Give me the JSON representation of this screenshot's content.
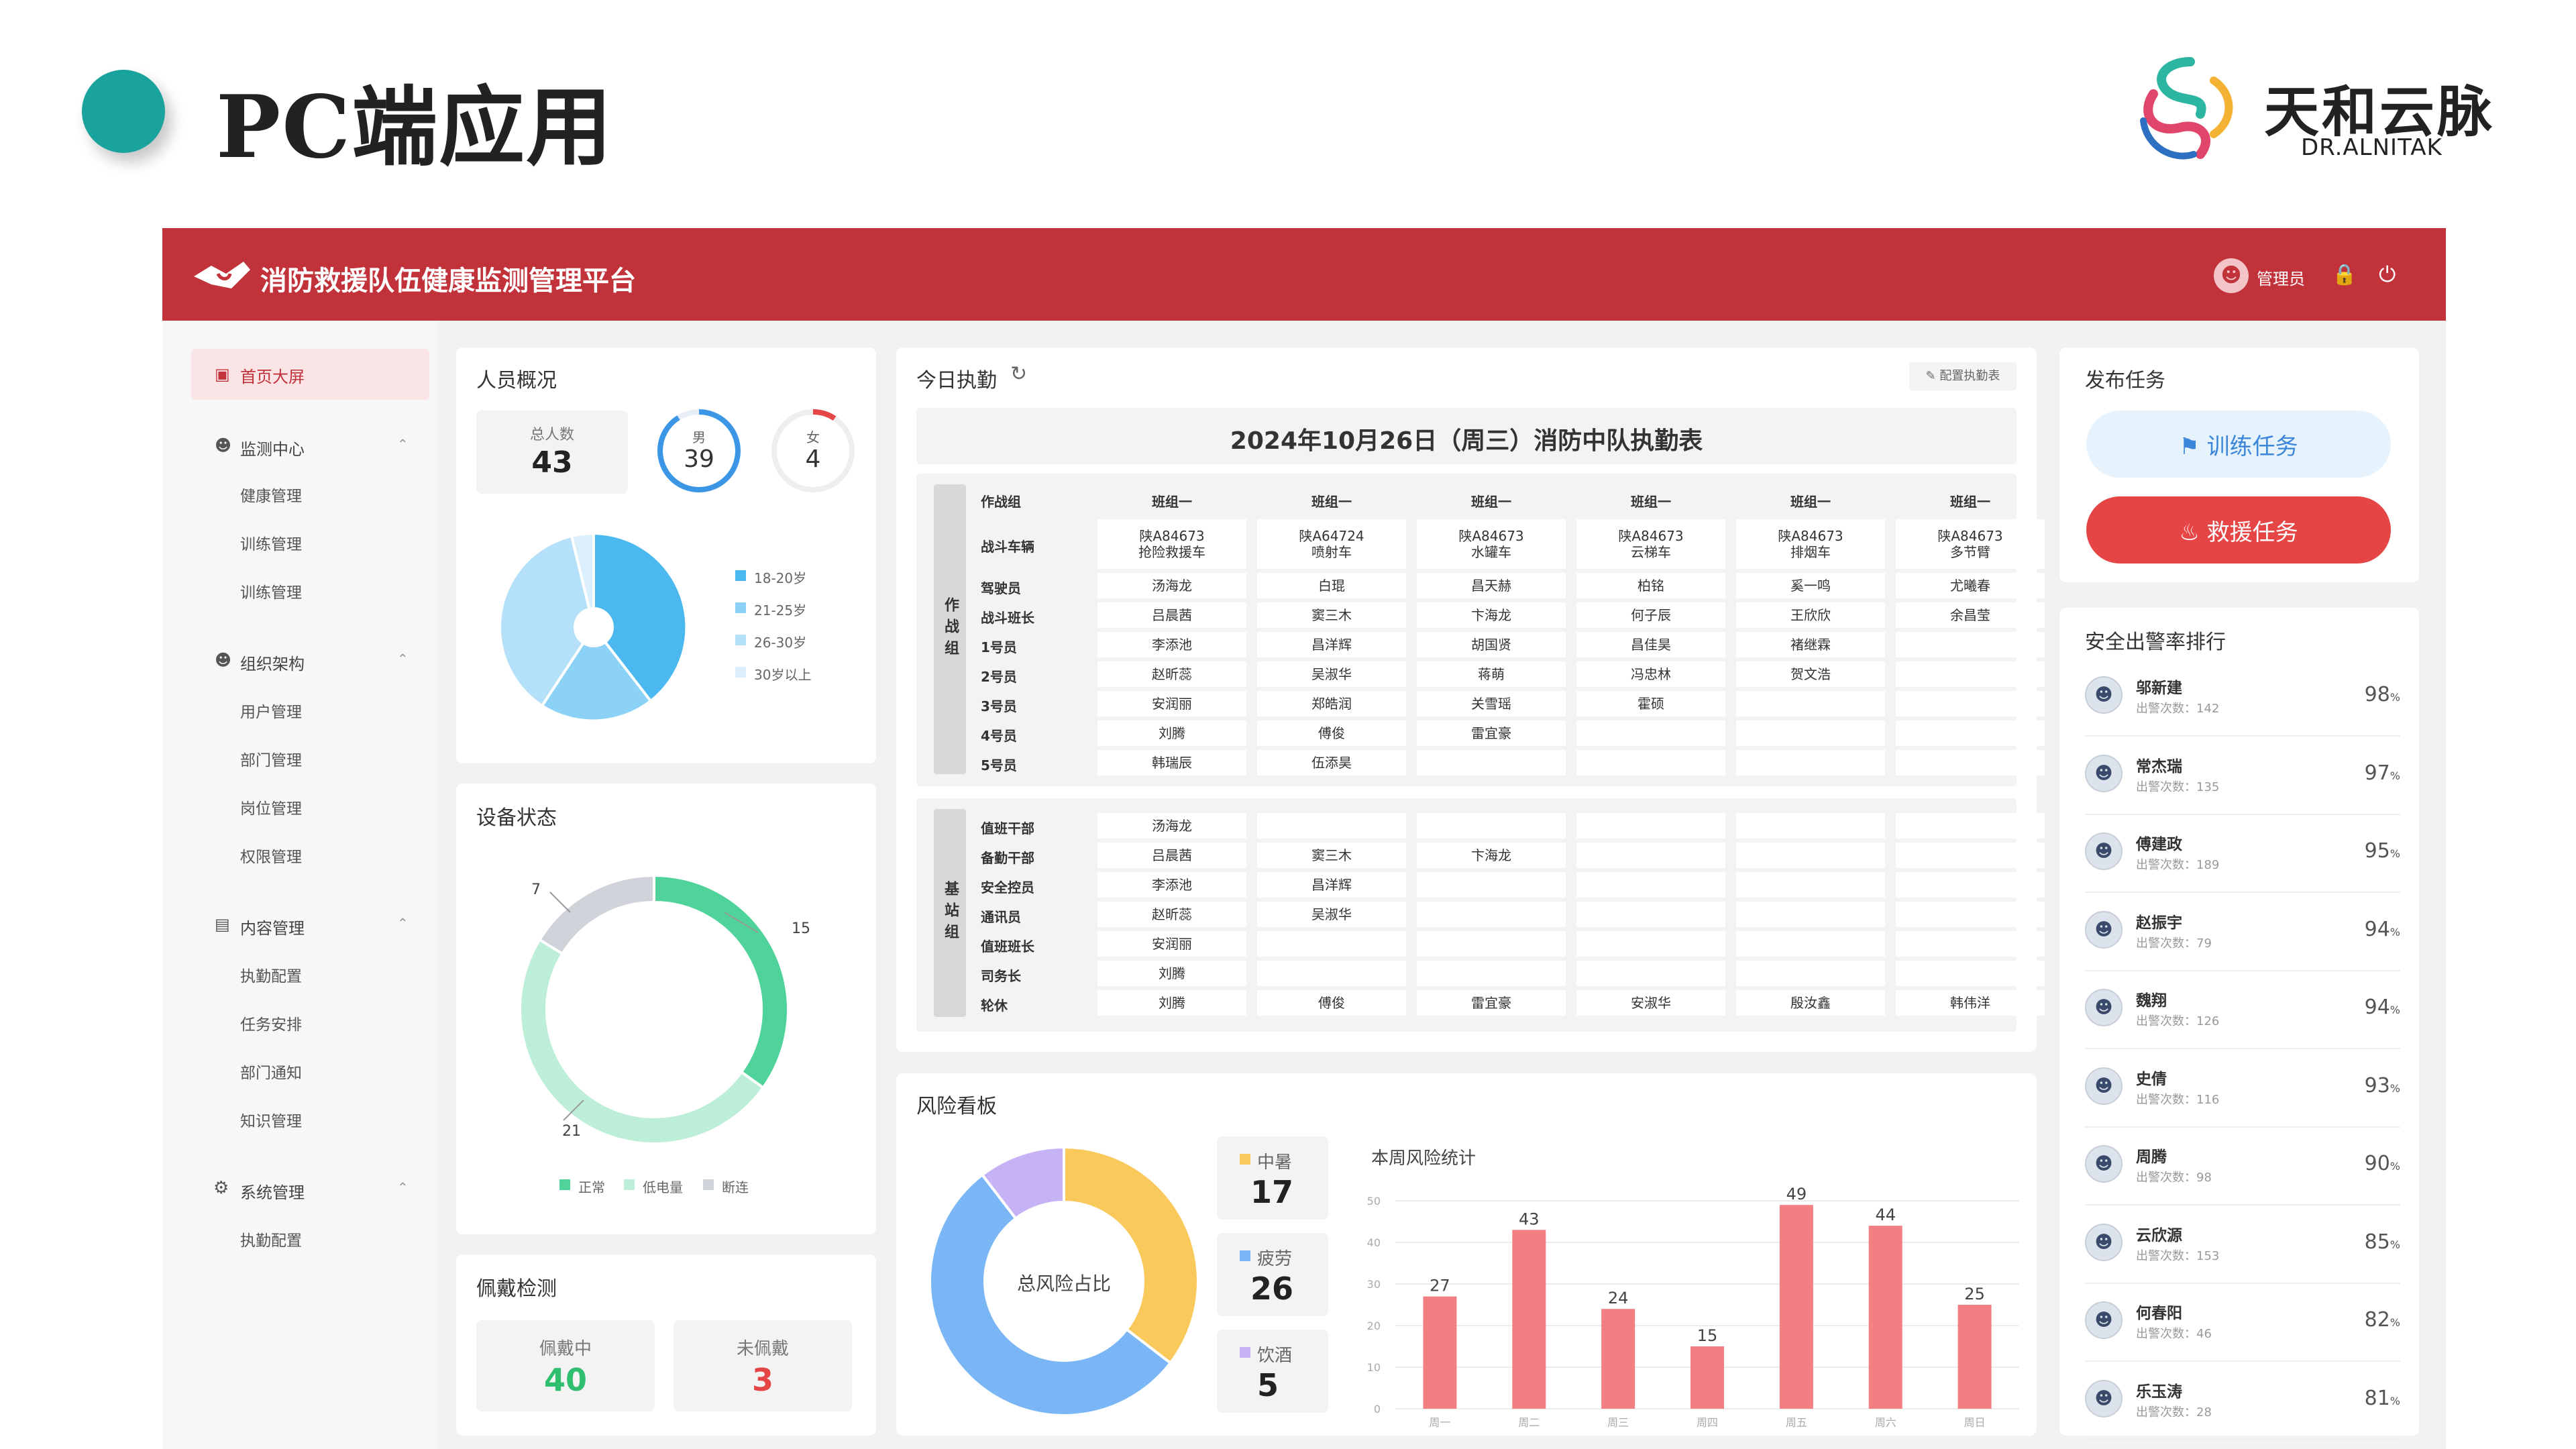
{
  "slide": {
    "title": "PC端应用",
    "brand_name": "天和云脉",
    "brand_sub": "DR.ALNITAK",
    "colors": {
      "dot": "#1aa39c",
      "header": "#c1323a"
    }
  },
  "app": {
    "title": "消防救援队伍健康监测管理平台",
    "user": "管理员",
    "icons": {
      "avatar": "user-icon",
      "lock": "lock-icon",
      "power": "power-icon"
    }
  },
  "sidebar": {
    "active": "首页大屏",
    "groups": [
      {
        "label": "监测中心",
        "items": [
          "健康管理",
          "训练管理",
          "训练管理"
        ]
      },
      {
        "label": "组织架构",
        "items": [
          "用户管理",
          "部门管理",
          "岗位管理",
          "权限管理"
        ]
      },
      {
        "label": "内容管理",
        "items": [
          "执勤配置",
          "任务安排",
          "部门通知",
          "知识管理"
        ]
      },
      {
        "label": "系统管理",
        "items": [
          "执勤配置"
        ]
      }
    ]
  },
  "personnel": {
    "title": "人员概况",
    "total_label": "总人数",
    "total": "43",
    "male_label": "男",
    "male": "39",
    "female_label": "女",
    "female": "4",
    "age_legend": [
      "18-20岁",
      "21-25岁",
      "26-30岁",
      "30岁以上"
    ],
    "age_colors": [
      "#4cb8f0",
      "#8cd2f6",
      "#b5e0fa",
      "#dbeffc"
    ]
  },
  "device": {
    "title": "设备状态",
    "chart_data": {
      "type": "pie",
      "title": "设备状态",
      "categories": [
        "正常",
        "低电量",
        "断连"
      ],
      "values": [
        15,
        21,
        7
      ],
      "colors": [
        "#4fd39b",
        "#bdeed7",
        "#d0d3da"
      ]
    },
    "labels": {
      "normal": "15",
      "low": "21",
      "offline": "7"
    },
    "legend": [
      "正常",
      "低电量",
      "断连"
    ]
  },
  "wear": {
    "title": "佩戴检测",
    "wearing_label": "佩戴中",
    "wearing": "40",
    "not_label": "未佩戴",
    "not": "3"
  },
  "duty": {
    "title": "今日执勤",
    "config_button": "配置执勤表",
    "table_title": "2024年10月26日（周三）消防中队执勤表",
    "combat_group": "作战组",
    "station_group": "基站组",
    "columns_header": "作战组",
    "columns": [
      "班组一",
      "班组一",
      "班组一",
      "班组一",
      "班组一",
      "班组一"
    ],
    "combat_rows": [
      {
        "label": "战斗车辆",
        "cells": [
          "陕A84673\n抢险救援车",
          "陕A64724\n喷射车",
          "陕A84673\n水罐车",
          "陕A84673\n云梯车",
          "陕A84673\n排烟车",
          "陕A84673\n多节臂"
        ]
      },
      {
        "label": "驾驶员",
        "cells": [
          "汤海龙",
          "白琨",
          "昌天赫",
          "柏铭",
          "奚一鸣",
          "尤曦春"
        ]
      },
      {
        "label": "战斗班长",
        "cells": [
          "吕晨茜",
          "窦三木",
          "卞海龙",
          "何子辰",
          "王欣欣",
          "余昌莹"
        ]
      },
      {
        "label": "1号员",
        "cells": [
          "李添池",
          "昌洋辉",
          "胡国贤",
          "昌佳昊",
          "褚继霖",
          ""
        ]
      },
      {
        "label": "2号员",
        "cells": [
          "赵昕蕊",
          "吴淑华",
          "蒋萌",
          "冯忠林",
          "贺文浩",
          ""
        ]
      },
      {
        "label": "3号员",
        "cells": [
          "安润丽",
          "郑皓润",
          "关雪瑶",
          "霍硕",
          "",
          ""
        ]
      },
      {
        "label": "4号员",
        "cells": [
          "刘腾",
          "傅俊",
          "雷宜豪",
          "",
          "",
          ""
        ]
      },
      {
        "label": "5号员",
        "cells": [
          "韩瑞辰",
          "伍添昊",
          "",
          "",
          "",
          ""
        ]
      }
    ],
    "station_rows": [
      {
        "label": "值班干部",
        "cells": [
          "汤海龙",
          "",
          "",
          "",
          "",
          ""
        ]
      },
      {
        "label": "备勤干部",
        "cells": [
          "吕晨茜",
          "窦三木",
          "卞海龙",
          "",
          "",
          ""
        ]
      },
      {
        "label": "安全控员",
        "cells": [
          "李添池",
          "昌洋辉",
          "",
          "",
          "",
          ""
        ]
      },
      {
        "label": "通讯员",
        "cells": [
          "赵昕蕊",
          "吴淑华",
          "",
          "",
          "",
          ""
        ]
      },
      {
        "label": "值班班长",
        "cells": [
          "安润丽",
          "",
          "",
          "",
          "",
          ""
        ]
      },
      {
        "label": "司务长",
        "cells": [
          "刘腾",
          "",
          "",
          "",
          "",
          ""
        ]
      },
      {
        "label": "轮休",
        "cells": [
          "刘腾",
          "傅俊",
          "雷宜豪",
          "安淑华",
          "殷汝鑫",
          "韩伟洋"
        ]
      }
    ]
  },
  "risk": {
    "title": "风险看板",
    "donut_center": "总风险占比",
    "items": [
      {
        "label": "中暑",
        "value": "17",
        "color": "#f9c95c"
      },
      {
        "label": "疲劳",
        "value": "26",
        "color": "#7ab5f5"
      },
      {
        "label": "饮酒",
        "value": "5",
        "color": "#c5b3f6"
      }
    ],
    "donut_chart": {
      "type": "pie",
      "categories": [
        "中暑",
        "疲劳",
        "饮酒"
      ],
      "values": [
        17,
        26,
        5
      ]
    },
    "week_title": "本周风险统计",
    "chart_data": {
      "type": "bar",
      "title": "本周风险统计",
      "categories": [
        "周一",
        "周二",
        "周三",
        "周四",
        "周五",
        "周六",
        "周日"
      ],
      "values": [
        27,
        43,
        24,
        15,
        49,
        44,
        25
      ],
      "ylim": [
        0,
        50
      ],
      "yticks": [
        0,
        10,
        20,
        30,
        40,
        50
      ]
    }
  },
  "tasks": {
    "title": "发布任务",
    "train": "训练任务",
    "rescue": "救援任务"
  },
  "ranking": {
    "title": "安全出警率排行",
    "count_label": "出警次数：",
    "unit": "%",
    "rows": [
      {
        "name": "邬新建",
        "count": "142",
        "pct": "98"
      },
      {
        "name": "常杰瑞",
        "count": "135",
        "pct": "97"
      },
      {
        "name": "傅建政",
        "count": "189",
        "pct": "95"
      },
      {
        "name": "赵振宇",
        "count": "79",
        "pct": "94"
      },
      {
        "name": "魏翔",
        "count": "126",
        "pct": "94"
      },
      {
        "name": "史倩",
        "count": "116",
        "pct": "93"
      },
      {
        "name": "周腾",
        "count": "98",
        "pct": "90"
      },
      {
        "name": "云欣源",
        "count": "153",
        "pct": "85"
      },
      {
        "name": "何春阳",
        "count": "46",
        "pct": "82"
      },
      {
        "name": "乐玉涛",
        "count": "28",
        "pct": "81"
      }
    ]
  }
}
